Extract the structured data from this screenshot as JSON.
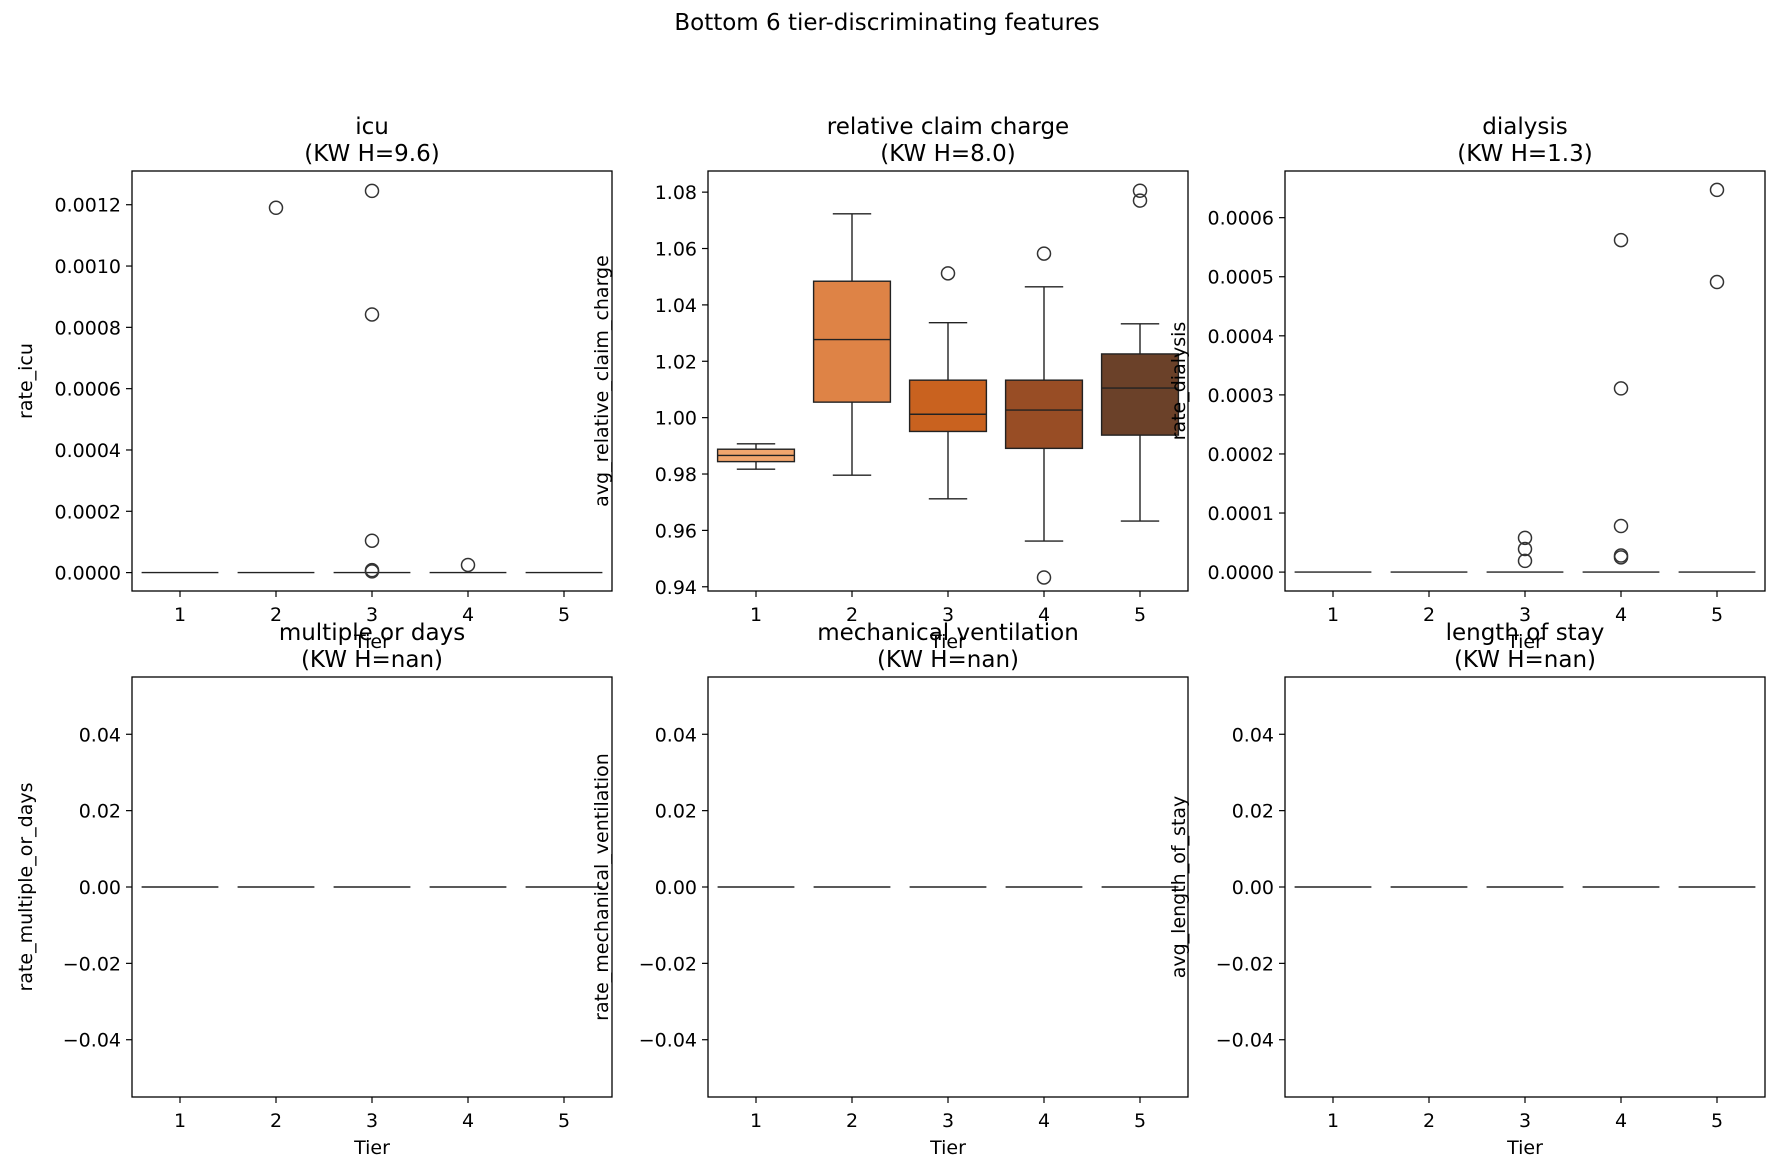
{
  "figure_title": "Bottom 6 tier-discriminating features",
  "chart_data": [
    {
      "type": "box",
      "title": "icu",
      "subtitle": "(KW H=9.6)",
      "xlabel": "Tier",
      "ylabel": "rate_icu",
      "categories": [
        "1",
        "2",
        "3",
        "4",
        "5"
      ],
      "ylim": [
        -6e-05,
        0.00131
      ],
      "yticks": [
        0,
        0.0002,
        0.0004,
        0.0006,
        0.0008,
        0.001,
        0.0012
      ],
      "ytick_labels": [
        "0.0000",
        "0.0002",
        "0.0004",
        "0.0006",
        "0.0008",
        "0.0010",
        "0.0012"
      ],
      "boxes": [
        {
          "q1": 0,
          "median": 0,
          "q3": 0,
          "whislo": 0,
          "whishi": 0,
          "fliers": []
        },
        {
          "q1": 0,
          "median": 0,
          "q3": 0,
          "whislo": 0,
          "whishi": 0,
          "fliers": [
            0.00119
          ]
        },
        {
          "q1": 0,
          "median": 0,
          "q3": 0,
          "whislo": 0,
          "whishi": 0,
          "fliers": [
            0.001245,
            0.000842,
            0.000104,
            8e-06,
            4e-06
          ]
        },
        {
          "q1": 0,
          "median": 0,
          "q3": 0,
          "whislo": 0,
          "whishi": 0,
          "fliers": [
            2.5e-05
          ]
        },
        {
          "q1": 0,
          "median": 0,
          "q3": 0,
          "whislo": 0,
          "whishi": 0,
          "fliers": []
        }
      ],
      "colors": [
        "#f2a66e",
        "#de8346",
        "#c9621f",
        "#984d25",
        "#6b4129"
      ]
    },
    {
      "type": "box",
      "title": "relative claim charge",
      "subtitle": "(KW H=8.0)",
      "xlabel": "Tier",
      "ylabel": "avg_relative_claim_charge",
      "categories": [
        "1",
        "2",
        "3",
        "4",
        "5"
      ],
      "ylim": [
        0.9385,
        1.0875
      ],
      "yticks": [
        0.94,
        0.96,
        0.98,
        1.0,
        1.02,
        1.04,
        1.06,
        1.08
      ],
      "ytick_labels": [
        "0.94",
        "0.96",
        "0.98",
        "1.00",
        "1.02",
        "1.04",
        "1.06",
        "1.08"
      ],
      "boxes": [
        {
          "q1": 0.9844,
          "median": 0.9866,
          "q3": 0.9888,
          "whislo": 0.9817,
          "whishi": 0.9907,
          "fliers": []
        },
        {
          "q1": 1.0055,
          "median": 1.0277,
          "q3": 1.0484,
          "whislo": 0.9796,
          "whishi": 1.0723,
          "fliers": []
        },
        {
          "q1": 0.9951,
          "median": 1.0012,
          "q3": 1.0133,
          "whislo": 0.9712,
          "whishi": 1.0337,
          "fliers": [
            1.0512
          ]
        },
        {
          "q1": 0.9891,
          "median": 1.0027,
          "q3": 1.0133,
          "whislo": 0.9562,
          "whishi": 1.0464,
          "fliers": [
            1.0582,
            0.9433
          ]
        },
        {
          "q1": 0.9938,
          "median": 1.0105,
          "q3": 1.0226,
          "whislo": 0.9633,
          "whishi": 1.0333,
          "fliers": [
            1.0805,
            1.077
          ]
        }
      ],
      "colors": [
        "#f2a66e",
        "#de8346",
        "#c9621f",
        "#984d25",
        "#6b4129"
      ]
    },
    {
      "type": "box",
      "title": "dialysis",
      "subtitle": "(KW H=1.3)",
      "xlabel": "Tier",
      "ylabel": "rate_dialysis",
      "categories": [
        "1",
        "2",
        "3",
        "4",
        "5"
      ],
      "ylim": [
        -3.2e-05,
        0.000679
      ],
      "yticks": [
        0,
        0.0001,
        0.0002,
        0.0003,
        0.0004,
        0.0005,
        0.0006
      ],
      "ytick_labels": [
        "0.0000",
        "0.0001",
        "0.0002",
        "0.0003",
        "0.0004",
        "0.0005",
        "0.0006"
      ],
      "boxes": [
        {
          "q1": 0,
          "median": 0,
          "q3": 0,
          "whislo": 0,
          "whishi": 0,
          "fliers": []
        },
        {
          "q1": 0,
          "median": 0,
          "q3": 0,
          "whislo": 0,
          "whishi": 0,
          "fliers": []
        },
        {
          "q1": 0,
          "median": 0,
          "q3": 0,
          "whislo": 0,
          "whishi": 0,
          "fliers": [
            5.8e-05,
            3.9e-05,
            1.9e-05
          ]
        },
        {
          "q1": 0,
          "median": 0,
          "q3": 0,
          "whislo": 0,
          "whishi": 0,
          "fliers": [
            0.000562,
            0.000311,
            7.8e-05,
            2.8e-05,
            2.5e-05
          ]
        },
        {
          "q1": 0,
          "median": 0,
          "q3": 0,
          "whislo": 0,
          "whishi": 0,
          "fliers": [
            0.000647,
            0.000491
          ]
        }
      ],
      "colors": [
        "#f2a66e",
        "#de8346",
        "#c9621f",
        "#984d25",
        "#6b4129"
      ]
    },
    {
      "type": "box",
      "title": "multiple or days",
      "subtitle": "(KW H=nan)",
      "xlabel": "Tier",
      "ylabel": "rate_multiple_or_days",
      "categories": [
        "1",
        "2",
        "3",
        "4",
        "5"
      ],
      "ylim": [
        -0.055,
        0.055
      ],
      "yticks": [
        -0.04,
        -0.02,
        0,
        0.02,
        0.04
      ],
      "ytick_labels": [
        "−0.04",
        "−0.02",
        "0.00",
        "0.02",
        "0.04"
      ],
      "boxes": [
        {
          "q1": 0,
          "median": 0,
          "q3": 0,
          "whislo": 0,
          "whishi": 0,
          "fliers": []
        },
        {
          "q1": 0,
          "median": 0,
          "q3": 0,
          "whislo": 0,
          "whishi": 0,
          "fliers": []
        },
        {
          "q1": 0,
          "median": 0,
          "q3": 0,
          "whislo": 0,
          "whishi": 0,
          "fliers": []
        },
        {
          "q1": 0,
          "median": 0,
          "q3": 0,
          "whislo": 0,
          "whishi": 0,
          "fliers": []
        },
        {
          "q1": 0,
          "median": 0,
          "q3": 0,
          "whislo": 0,
          "whishi": 0,
          "fliers": []
        }
      ],
      "colors": [
        "#f2a66e",
        "#de8346",
        "#c9621f",
        "#984d25",
        "#6b4129"
      ]
    },
    {
      "type": "box",
      "title": "mechanical ventilation",
      "subtitle": "(KW H=nan)",
      "xlabel": "Tier",
      "ylabel": "rate_mechanical_ventilation",
      "categories": [
        "1",
        "2",
        "3",
        "4",
        "5"
      ],
      "ylim": [
        -0.055,
        0.055
      ],
      "yticks": [
        -0.04,
        -0.02,
        0,
        0.02,
        0.04
      ],
      "ytick_labels": [
        "−0.04",
        "−0.02",
        "0.00",
        "0.02",
        "0.04"
      ],
      "boxes": [
        {
          "q1": 0,
          "median": 0,
          "q3": 0,
          "whislo": 0,
          "whishi": 0,
          "fliers": []
        },
        {
          "q1": 0,
          "median": 0,
          "q3": 0,
          "whislo": 0,
          "whishi": 0,
          "fliers": []
        },
        {
          "q1": 0,
          "median": 0,
          "q3": 0,
          "whislo": 0,
          "whishi": 0,
          "fliers": []
        },
        {
          "q1": 0,
          "median": 0,
          "q3": 0,
          "whislo": 0,
          "whishi": 0,
          "fliers": []
        },
        {
          "q1": 0,
          "median": 0,
          "q3": 0,
          "whislo": 0,
          "whishi": 0,
          "fliers": []
        }
      ],
      "colors": [
        "#f2a66e",
        "#de8346",
        "#c9621f",
        "#984d25",
        "#6b4129"
      ]
    },
    {
      "type": "box",
      "title": "length of stay",
      "subtitle": "(KW H=nan)",
      "xlabel": "Tier",
      "ylabel": "avg_length_of_stay",
      "categories": [
        "1",
        "2",
        "3",
        "4",
        "5"
      ],
      "ylim": [
        -0.055,
        0.055
      ],
      "yticks": [
        -0.04,
        -0.02,
        0,
        0.02,
        0.04
      ],
      "ytick_labels": [
        "−0.04",
        "−0.02",
        "0.00",
        "0.02",
        "0.04"
      ],
      "boxes": [
        {
          "q1": 0,
          "median": 0,
          "q3": 0,
          "whislo": 0,
          "whishi": 0,
          "fliers": []
        },
        {
          "q1": 0,
          "median": 0,
          "q3": 0,
          "whislo": 0,
          "whishi": 0,
          "fliers": []
        },
        {
          "q1": 0,
          "median": 0,
          "q3": 0,
          "whislo": 0,
          "whishi": 0,
          "fliers": []
        },
        {
          "q1": 0,
          "median": 0,
          "q3": 0,
          "whislo": 0,
          "whishi": 0,
          "fliers": []
        },
        {
          "q1": 0,
          "median": 0,
          "q3": 0,
          "whislo": 0,
          "whishi": 0,
          "fliers": []
        }
      ],
      "colors": [
        "#f2a66e",
        "#de8346",
        "#c9621f",
        "#984d25",
        "#6b4129"
      ]
    }
  ]
}
